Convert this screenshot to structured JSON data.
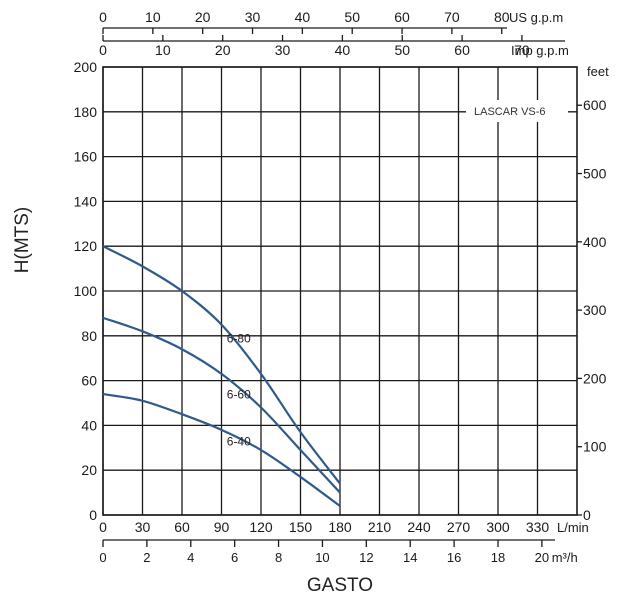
{
  "chart_data": {
    "type": "line",
    "title": "",
    "model_label": "LASCAR VS-6",
    "ylabel": "H(MTS)",
    "xlabel": "GASTO",
    "x_unit": "L/min",
    "x_range": [
      0,
      360
    ],
    "x_ticks": [
      "0",
      "30",
      "60",
      "90",
      "120",
      "150",
      "180",
      "210",
      "240",
      "270",
      "300",
      "330"
    ],
    "y_range": [
      0,
      200
    ],
    "y_ticks": [
      "0",
      "20",
      "40",
      "60",
      "80",
      "100",
      "120",
      "140",
      "160",
      "180",
      "200"
    ],
    "grid": true,
    "secondary_axes": {
      "top_us": {
        "unit": "US g.p.m",
        "ticks": [
          "0",
          "10",
          "20",
          "30",
          "40",
          "50",
          "60",
          "70",
          "80"
        ],
        "range": [
          0,
          95.1
        ]
      },
      "top_imp": {
        "unit": "Imp g.p.m",
        "ticks": [
          "0",
          "10",
          "20",
          "30",
          "40",
          "50",
          "60",
          "70"
        ],
        "range": [
          0,
          79.2
        ]
      },
      "bottom_m3h": {
        "unit": "m³/h",
        "ticks": [
          "0",
          "2",
          "4",
          "6",
          "8",
          "10",
          "12",
          "14",
          "16",
          "18",
          "20"
        ],
        "range": [
          0,
          21.6
        ]
      },
      "right_feet": {
        "unit": "feet",
        "ticks": [
          "0",
          "100",
          "200",
          "300",
          "400",
          "500",
          "600"
        ],
        "range": [
          0,
          656
        ]
      }
    },
    "series": [
      {
        "name": "6-80",
        "x": [
          0,
          30,
          60,
          90,
          120,
          150,
          180
        ],
        "y": [
          120,
          111,
          100,
          85,
          63,
          37,
          14
        ]
      },
      {
        "name": "6-60",
        "x": [
          0,
          30,
          60,
          90,
          120,
          150,
          180
        ],
        "y": [
          88,
          82,
          74,
          63,
          48,
          29,
          10
        ]
      },
      {
        "name": "6-40",
        "x": [
          0,
          30,
          60,
          90,
          120,
          150,
          180
        ],
        "y": [
          54,
          51,
          45,
          38,
          29,
          17,
          4
        ]
      }
    ]
  }
}
